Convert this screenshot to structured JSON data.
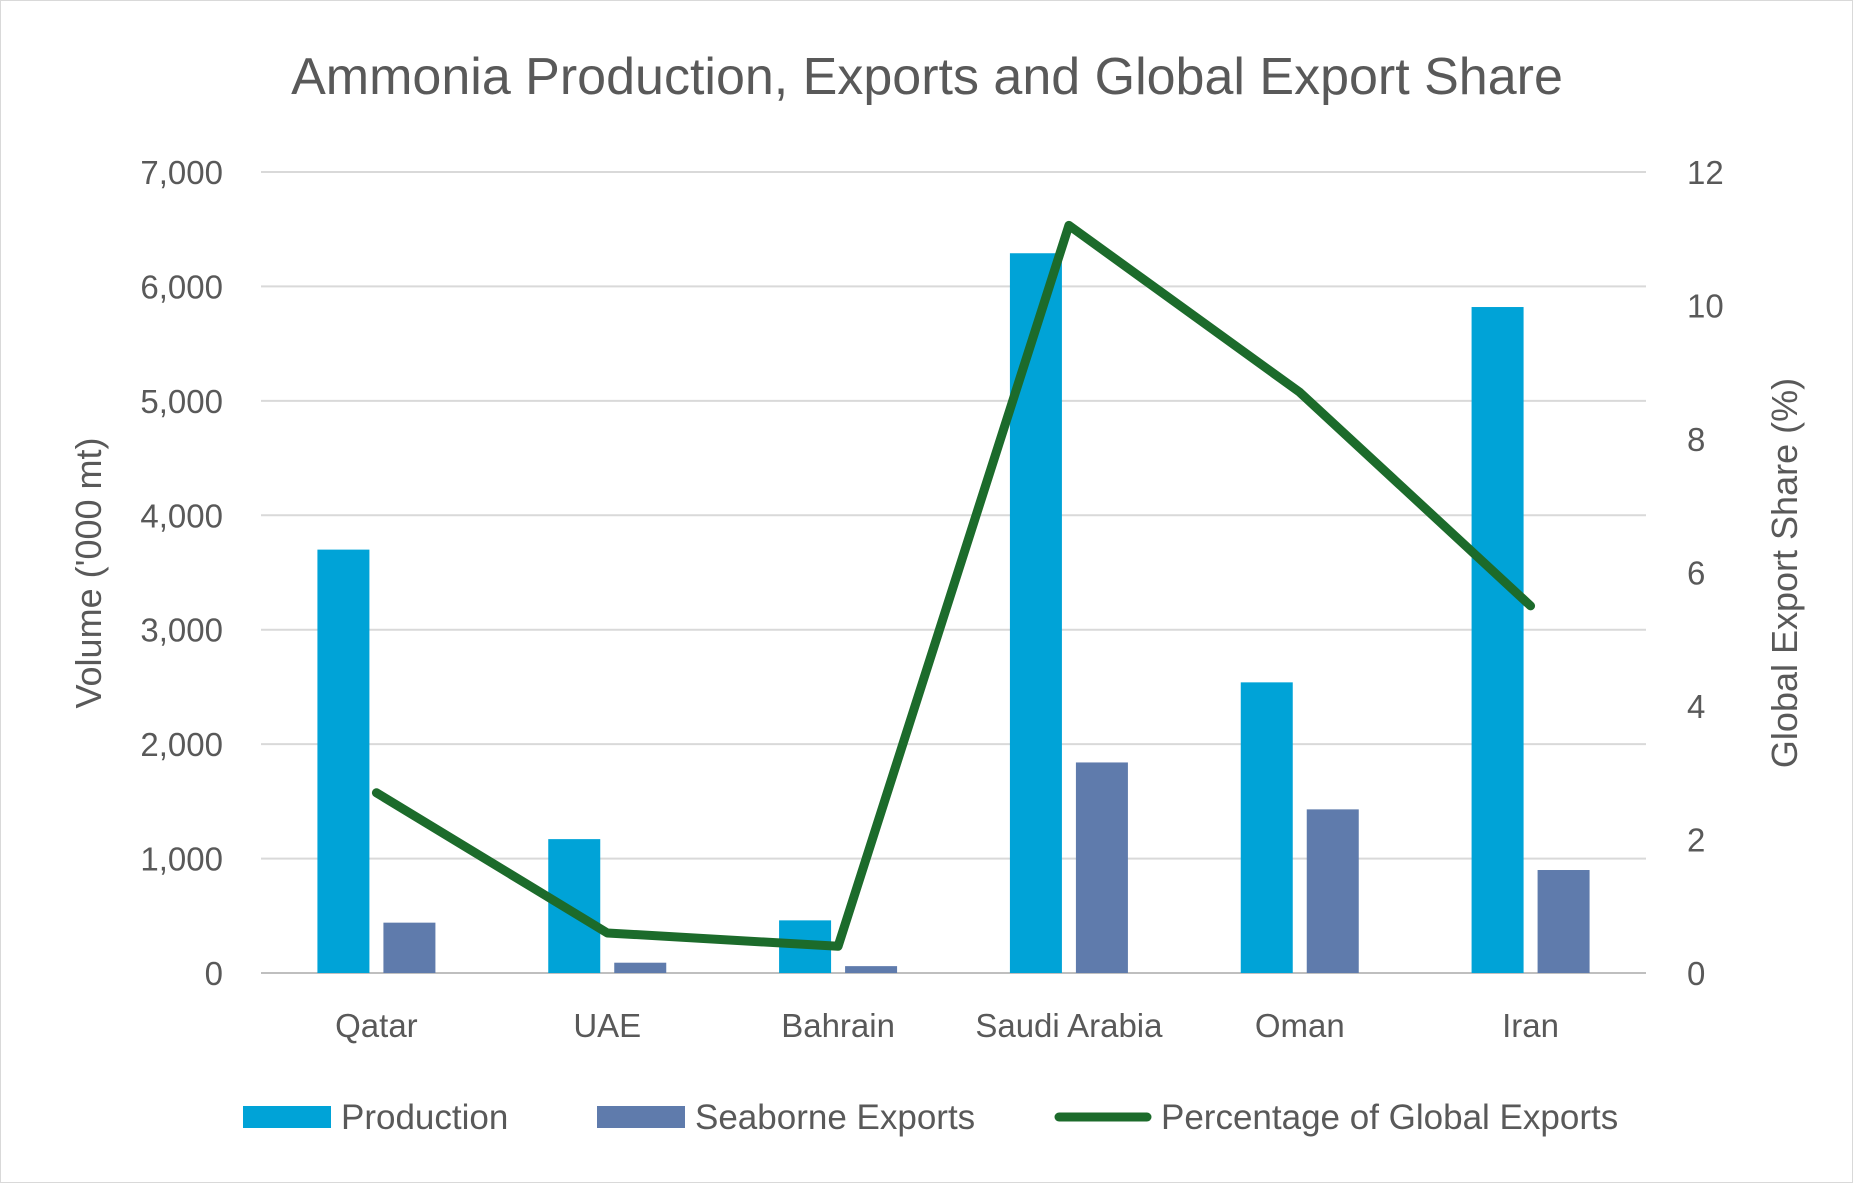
{
  "chart_data": {
    "type": "bar",
    "title": "Ammonia Production, Exports and Global Export Share",
    "categories": [
      "Qatar",
      "UAE",
      "Bahrain",
      "Saudi Arabia",
      "Oman",
      "Iran"
    ],
    "ylabel": "Volume ('000 mt)",
    "y2label": "Global Export Share (%)",
    "ylim": [
      0,
      7000
    ],
    "y2lim": [
      0,
      12
    ],
    "yticks": [
      "0",
      "1,000",
      "2,000",
      "3,000",
      "4,000",
      "5,000",
      "6,000",
      "7,000"
    ],
    "y2ticks": [
      "0",
      "2",
      "4",
      "6",
      "8",
      "10",
      "12"
    ],
    "grid": true,
    "legend_position": "bottom",
    "series": [
      {
        "name": "Production",
        "type": "bar",
        "axis": "left",
        "color": "#00a3d7",
        "values": [
          3700,
          1170,
          460,
          6290,
          2540,
          5820
        ]
      },
      {
        "name": "Seaborne Exports",
        "type": "bar",
        "axis": "left",
        "color": "#5f7bac",
        "values": [
          440,
          90,
          60,
          1840,
          1430,
          900
        ]
      },
      {
        "name": "Percentage of Global Exports",
        "type": "line",
        "axis": "right",
        "color": "#1c6b2b",
        "values": [
          2.7,
          0.6,
          0.4,
          11.2,
          8.7,
          5.5
        ]
      }
    ]
  }
}
